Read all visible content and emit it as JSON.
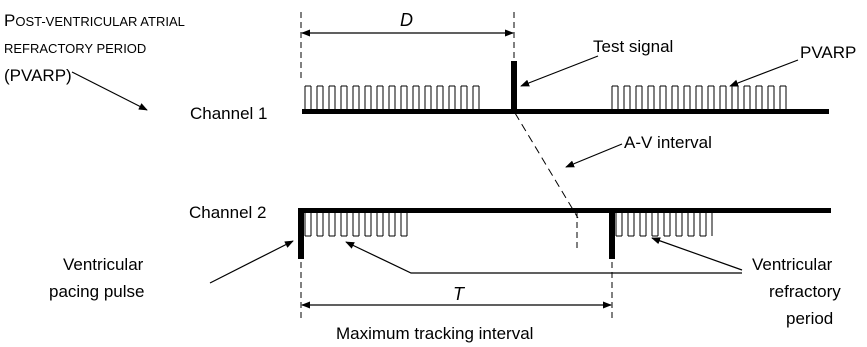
{
  "labels": {
    "pvarp_full_line1_big": "P",
    "pvarp_full_line1_rest": "OST-VENTRICULAR ATRIAL",
    "pvarp_full_line2": "REFRACTORY PERIOD",
    "pvarp_full_line3": "(PVARP)",
    "d": "D",
    "test_signal": "Test signal",
    "pvarp": "PVARP",
    "channel1": "Channel 1",
    "av_interval": "A-V interval",
    "channel2": "Channel 2",
    "ventricular_pacing_line1": "Ventricular",
    "ventricular_pacing_line2": "pacing pulse",
    "ventricular_refractory_line1": "Ventricular",
    "ventricular_refractory_line2": "refractory",
    "ventricular_refractory_line3": "period",
    "t": "T",
    "max_tracking": "Maximum tracking interval"
  },
  "colors": {
    "ink": "#000000",
    "background": "#ffffff"
  }
}
